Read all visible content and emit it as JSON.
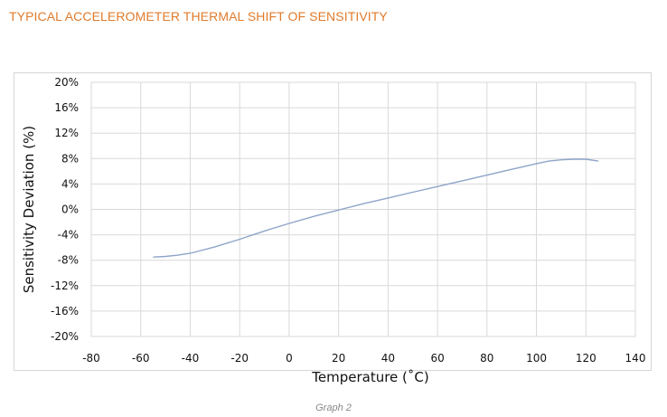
{
  "title": "TYPICAL ACCELEROMETER THERMAL SHIFT OF SENSITIVITY",
  "caption": "Graph 2",
  "colors": {
    "title": "#e07b2c",
    "line": "#8ea4c8",
    "grid": "#d9d9d9"
  },
  "chart_data": {
    "type": "line",
    "xlabel": "Temperature (˚C)",
    "ylabel": "Sensitivity Deviation (%)",
    "xlim": [
      -80,
      140
    ],
    "ylim": [
      -20,
      20
    ],
    "x_ticks": [
      -80,
      -60,
      -40,
      -20,
      0,
      20,
      40,
      60,
      80,
      100,
      120,
      140
    ],
    "x_tick_labels": [
      "-80",
      "-60",
      "-40",
      "-20",
      "0",
      "20",
      "40",
      "60",
      "80",
      "100",
      "120",
      "140"
    ],
    "y_ticks": [
      20,
      16,
      12,
      8,
      4,
      0,
      -4,
      -8,
      -12,
      -16,
      -20
    ],
    "y_tick_labels": [
      "20%",
      "16%",
      "12%",
      "8%",
      "4%",
      "0%",
      "-4%",
      "-8%",
      "-12%",
      "-16%",
      "-20%"
    ],
    "grid": true,
    "series": [
      {
        "x": [
          -55,
          -50,
          -45,
          -40,
          -35,
          -30,
          -20,
          -10,
          0,
          10,
          20,
          30,
          40,
          50,
          60,
          70,
          80,
          90,
          100,
          105,
          110,
          115,
          120,
          125
        ],
        "y": [
          -7.5,
          -7.4,
          -7.2,
          -6.9,
          -6.4,
          -5.9,
          -4.7,
          -3.4,
          -2.2,
          -1.1,
          -0.1,
          0.9,
          1.8,
          2.7,
          3.6,
          4.5,
          5.4,
          6.3,
          7.2,
          7.6,
          7.8,
          7.9,
          7.9,
          7.6
        ]
      }
    ]
  }
}
